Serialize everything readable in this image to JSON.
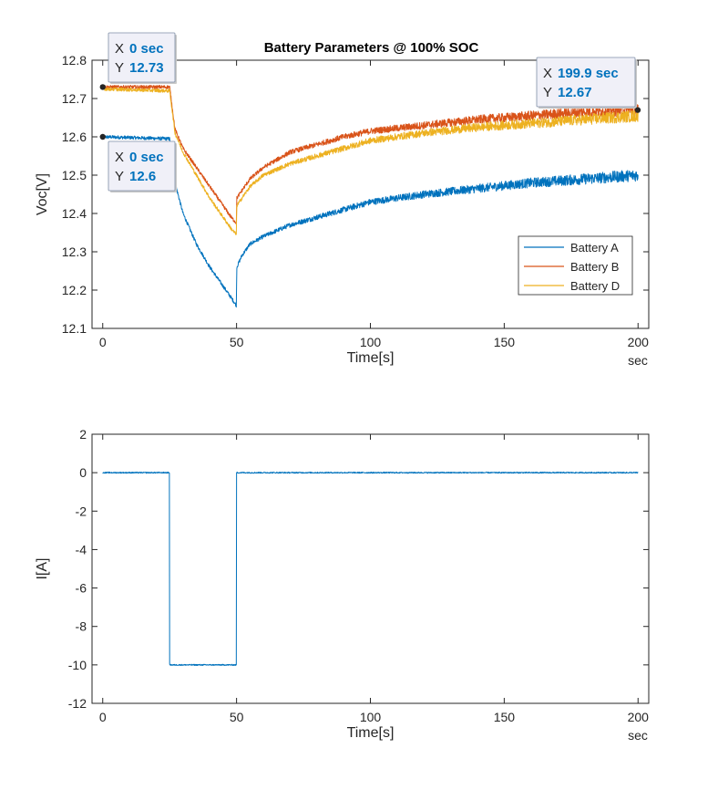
{
  "chart_data": [
    {
      "type": "line",
      "title": "Battery Parameters @ 100% SOC",
      "xlabel": "Time[s]",
      "ylabel": "Voc[V]",
      "x_unit": "sec",
      "xlim": [
        -4,
        204
      ],
      "ylim": [
        12.1,
        12.8
      ],
      "xticks": [
        0,
        50,
        100,
        150,
        200
      ],
      "yticks": [
        12.1,
        12.2,
        12.3,
        12.4,
        12.5,
        12.6,
        12.7,
        12.8
      ],
      "ytick_labels": [
        "12.1",
        "12.2",
        "12.3",
        "12.4",
        "12.5",
        "12.6",
        "12.7",
        "12.8"
      ],
      "grid": false,
      "legend_position": "lower-right",
      "series": [
        {
          "name": "Battery A",
          "color": "#0072BD",
          "x": [
            0,
            25,
            27,
            30,
            35,
            40,
            45,
            48,
            49.9,
            50.1,
            52,
            55,
            60,
            70,
            80,
            90,
            100,
            120,
            140,
            160,
            180,
            200
          ],
          "y": [
            12.6,
            12.595,
            12.48,
            12.4,
            12.32,
            12.26,
            12.21,
            12.18,
            12.16,
            12.26,
            12.29,
            12.32,
            12.34,
            12.37,
            12.39,
            12.41,
            12.43,
            12.45,
            12.465,
            12.48,
            12.49,
            12.5
          ]
        },
        {
          "name": "Battery B",
          "color": "#D95319",
          "x": [
            0,
            25,
            27,
            30,
            35,
            40,
            45,
            48,
            49.9,
            50.1,
            52,
            55,
            60,
            70,
            80,
            90,
            100,
            120,
            140,
            160,
            180,
            200
          ],
          "y": [
            12.73,
            12.73,
            12.62,
            12.57,
            12.52,
            12.47,
            12.42,
            12.39,
            12.375,
            12.44,
            12.46,
            12.49,
            12.52,
            12.56,
            12.58,
            12.6,
            12.615,
            12.63,
            12.645,
            12.655,
            12.665,
            12.67
          ]
        },
        {
          "name": "Battery D",
          "color": "#EDB120",
          "x": [
            0,
            25,
            27,
            30,
            35,
            40,
            45,
            48,
            49.9,
            50.1,
            52,
            55,
            60,
            70,
            80,
            90,
            100,
            120,
            140,
            160,
            180,
            200
          ],
          "y": [
            12.725,
            12.72,
            12.61,
            12.56,
            12.5,
            12.44,
            12.39,
            12.36,
            12.345,
            12.42,
            12.44,
            12.47,
            12.5,
            12.53,
            12.55,
            12.57,
            12.59,
            12.61,
            12.625,
            12.635,
            12.645,
            12.655
          ]
        }
      ],
      "datatips": [
        {
          "x_key": "X",
          "x_value": "0 sec",
          "y_key": "Y",
          "y_value": "12.73",
          "point_x": 0,
          "point_y": 12.73
        },
        {
          "x_key": "X",
          "x_value": "0 sec",
          "y_key": "Y",
          "y_value": "12.6",
          "point_x": 0,
          "point_y": 12.6
        },
        {
          "x_key": "X",
          "x_value": "199.9 sec",
          "y_key": "Y",
          "y_value": "12.67",
          "point_x": 199.9,
          "point_y": 12.67
        }
      ],
      "datatip_value_color": "#0072BD"
    },
    {
      "type": "line",
      "title": "",
      "xlabel": "Time[s]",
      "ylabel": "I[A]",
      "x_unit": "sec",
      "xlim": [
        -4,
        204
      ],
      "ylim": [
        -12,
        2
      ],
      "xticks": [
        0,
        50,
        100,
        150,
        200
      ],
      "yticks": [
        -12,
        -10,
        -8,
        -6,
        -4,
        -2,
        0,
        2
      ],
      "ytick_labels": [
        "-12",
        "-10",
        "-8",
        "-6",
        "-4",
        "-2",
        "0",
        "2"
      ],
      "grid": false,
      "series": [
        {
          "color": "#0072BD",
          "x": [
            0,
            24.9,
            25,
            49.9,
            50,
            200
          ],
          "y": [
            0,
            0,
            -10,
            -10,
            0,
            0
          ]
        }
      ]
    }
  ]
}
